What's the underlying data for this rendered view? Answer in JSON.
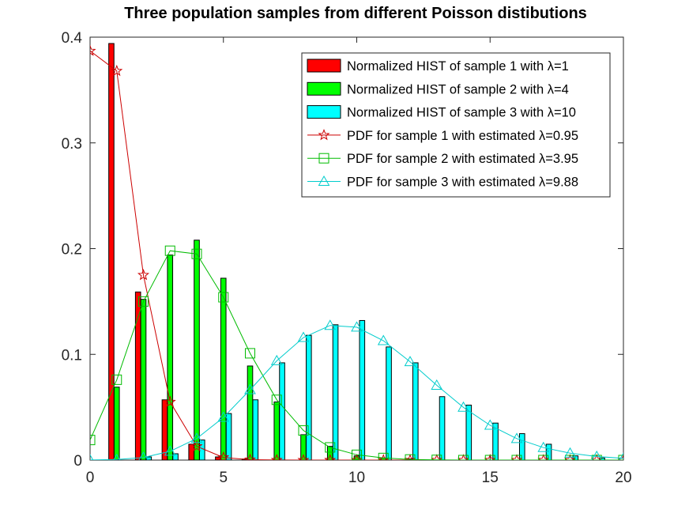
{
  "chart_data": {
    "type": "bar",
    "title": "Three population samples from different Poisson distibutions",
    "xlabel": "",
    "ylabel": "",
    "xlim": [
      0,
      20
    ],
    "ylim": [
      0,
      0.4
    ],
    "xticks": [
      "0",
      "5",
      "10",
      "15",
      "20"
    ],
    "yticks": [
      "0",
      "0.1",
      "0.2",
      "0.3",
      "0.4"
    ],
    "grid": false,
    "legend_position": "top-right",
    "colors": {
      "sample1": "#ff0000",
      "sample2": "#00ff00",
      "sample3": "#00ffff",
      "pdf1": "#cc0000",
      "pdf2": "#00bb00",
      "pdf3": "#00cccc"
    },
    "x": [
      0,
      1,
      2,
      3,
      4,
      5,
      6,
      7,
      8,
      9,
      10,
      11,
      12,
      13,
      14,
      15,
      16,
      17,
      18,
      19,
      20
    ],
    "histograms": [
      {
        "name": "Normalized HIST of sample 1 with λ=1",
        "values": [
          0.0,
          0.394,
          0.159,
          0.057,
          0.015,
          0.003,
          0.001,
          0,
          0,
          0,
          0,
          0,
          0,
          0,
          0,
          0,
          0,
          0,
          0,
          0,
          0
        ]
      },
      {
        "name": "Normalized HIST of sample 2 with λ=4",
        "values": [
          0.0,
          0.069,
          0.152,
          0.194,
          0.208,
          0.172,
          0.089,
          0.055,
          0.024,
          0.013,
          0.004,
          0.002,
          0.001,
          0,
          0,
          0,
          0,
          0,
          0,
          0,
          0
        ]
      },
      {
        "name": "Normalized HIST of sample 3 with λ=10",
        "values": [
          0.0,
          0.0,
          0.003,
          0.006,
          0.019,
          0.044,
          0.057,
          0.092,
          0.118,
          0.128,
          0.132,
          0.107,
          0.092,
          0.06,
          0.052,
          0.035,
          0.025,
          0.015,
          0.004,
          0.002,
          0.001
        ]
      }
    ],
    "series": [
      {
        "name": "PDF for sample 1 with estimated λ=0.95",
        "marker": "star",
        "values": [
          0.387,
          0.368,
          0.175,
          0.055,
          0.013,
          0.0025,
          0.0004,
          0.0001,
          0,
          0,
          0,
          0,
          0,
          0,
          0,
          0,
          0,
          0,
          0,
          0,
          0
        ]
      },
      {
        "name": "PDF for sample 2 with estimated λ=3.95",
        "marker": "square",
        "values": [
          0.019,
          0.076,
          0.15,
          0.198,
          0.195,
          0.154,
          0.101,
          0.057,
          0.028,
          0.012,
          0.005,
          0.002,
          0.0006,
          0.0002,
          0,
          0,
          0,
          0,
          0,
          0,
          0
        ]
      },
      {
        "name": "PDF for sample 3 with estimated λ=9.88",
        "marker": "triangle",
        "values": [
          5e-05,
          0.0005,
          0.0025,
          0.0083,
          0.0204,
          0.0404,
          0.0665,
          0.0939,
          0.1159,
          0.1273,
          0.1257,
          0.1129,
          0.093,
          0.0707,
          0.0499,
          0.0329,
          0.0203,
          0.0118,
          0.0065,
          0.0034,
          0.0017
        ]
      }
    ]
  }
}
